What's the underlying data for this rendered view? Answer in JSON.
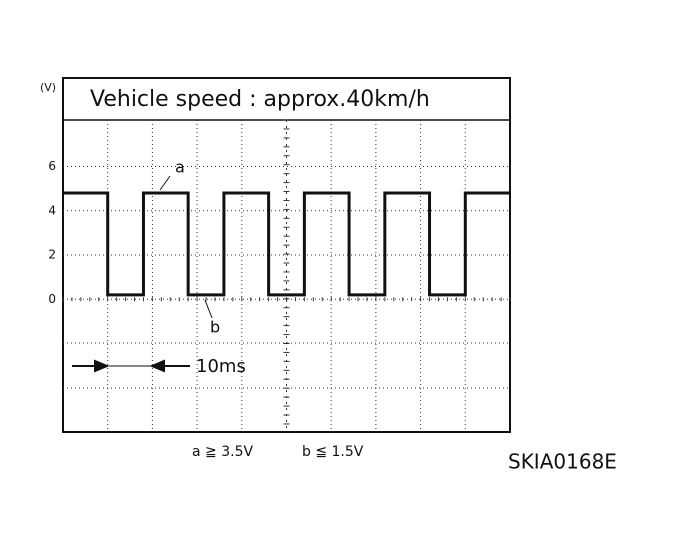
{
  "chart_data": {
    "type": "line",
    "title": "Vehicle speed : approx.40km/h",
    "y_label": "(V)",
    "x": [
      0,
      10,
      10,
      18,
      18,
      28,
      28,
      36,
      36,
      46,
      46,
      54,
      54,
      64,
      64,
      72,
      72,
      82,
      82,
      90,
      90,
      100
    ],
    "values": [
      4.8,
      4.8,
      0.2,
      0.2,
      4.8,
      4.8,
      0.2,
      0.2,
      4.8,
      4.8,
      0.2,
      0.2,
      4.8,
      4.8,
      0.2,
      0.2,
      4.8,
      4.8,
      0.2,
      0.2,
      4.8,
      4.8
    ],
    "color": "#111111",
    "xlim": [
      0,
      100
    ],
    "ylim": [
      -6,
      10
    ],
    "yticks": [
      0,
      2,
      4,
      6
    ],
    "grid": true,
    "annotations": [
      "a",
      "b",
      "10ms",
      "a ≧ 3.5V",
      "b ≦ 1.5V"
    ],
    "figure_id": "SKIA0168E"
  }
}
